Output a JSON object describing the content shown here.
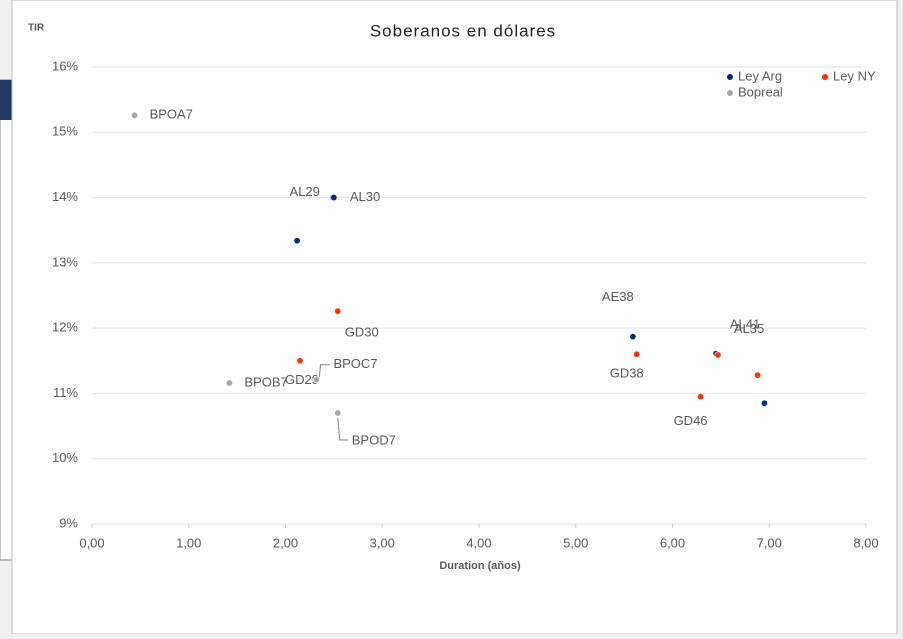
{
  "chart_data": {
    "type": "scatter",
    "title": "Soberanos en dólares",
    "y_label": "TIR",
    "x_label": "Duration (años)",
    "xlim": [
      0,
      8
    ],
    "xticks": [
      {
        "value": 0,
        "label": "0,00"
      },
      {
        "value": 1,
        "label": "1,00"
      },
      {
        "value": 2,
        "label": "2,00"
      },
      {
        "value": 3,
        "label": "3,00"
      },
      {
        "value": 4,
        "label": "4,00"
      },
      {
        "value": 5,
        "label": "5,00"
      },
      {
        "value": 6,
        "label": "6,00"
      },
      {
        "value": 7,
        "label": "7,00"
      },
      {
        "value": 8,
        "label": "8,00"
      }
    ],
    "ylim": [
      9,
      16
    ],
    "yticks": [
      {
        "value": 9,
        "label": "9%"
      },
      {
        "value": 10,
        "label": "10%"
      },
      {
        "value": 11,
        "label": "11%"
      },
      {
        "value": 12,
        "label": "12%"
      },
      {
        "value": 13,
        "label": "13%"
      },
      {
        "value": 14,
        "label": "14%"
      },
      {
        "value": 15,
        "label": "15%"
      },
      {
        "value": 16,
        "label": "16%"
      }
    ],
    "grid": true,
    "legend": "top-right",
    "series": [
      {
        "name": "Ley Arg",
        "color": "#002a7a",
        "x": [
          2.12,
          2.49,
          2.5,
          5.59,
          6.46,
          6.45,
          6.95
        ],
        "values": [
          13.34,
          14.0,
          14.0,
          11.87,
          11.6,
          11.61,
          10.85
        ],
        "labels": [
          null,
          "AL29",
          "AL30",
          "AE38",
          "AL41",
          "AL35",
          null
        ]
      },
      {
        "name": "Ley NY",
        "color": "#ff3300",
        "x": [
          2.54,
          2.15,
          5.63,
          6.47,
          6.88,
          6.29
        ],
        "values": [
          12.26,
          11.5,
          11.6,
          11.59,
          11.28,
          10.95
        ],
        "labels": [
          "GD30",
          "GD29",
          "GD38",
          null,
          null,
          "GD46"
        ]
      },
      {
        "name": "Bopreal",
        "color": "#a6a6a6",
        "x": [
          0.44,
          1.42,
          2.32,
          2.54
        ],
        "values": [
          15.26,
          11.16,
          11.21,
          10.7
        ],
        "labels": [
          "BPOA7",
          "BPOB7",
          "BPOC7",
          "BPOD7"
        ]
      }
    ]
  }
}
